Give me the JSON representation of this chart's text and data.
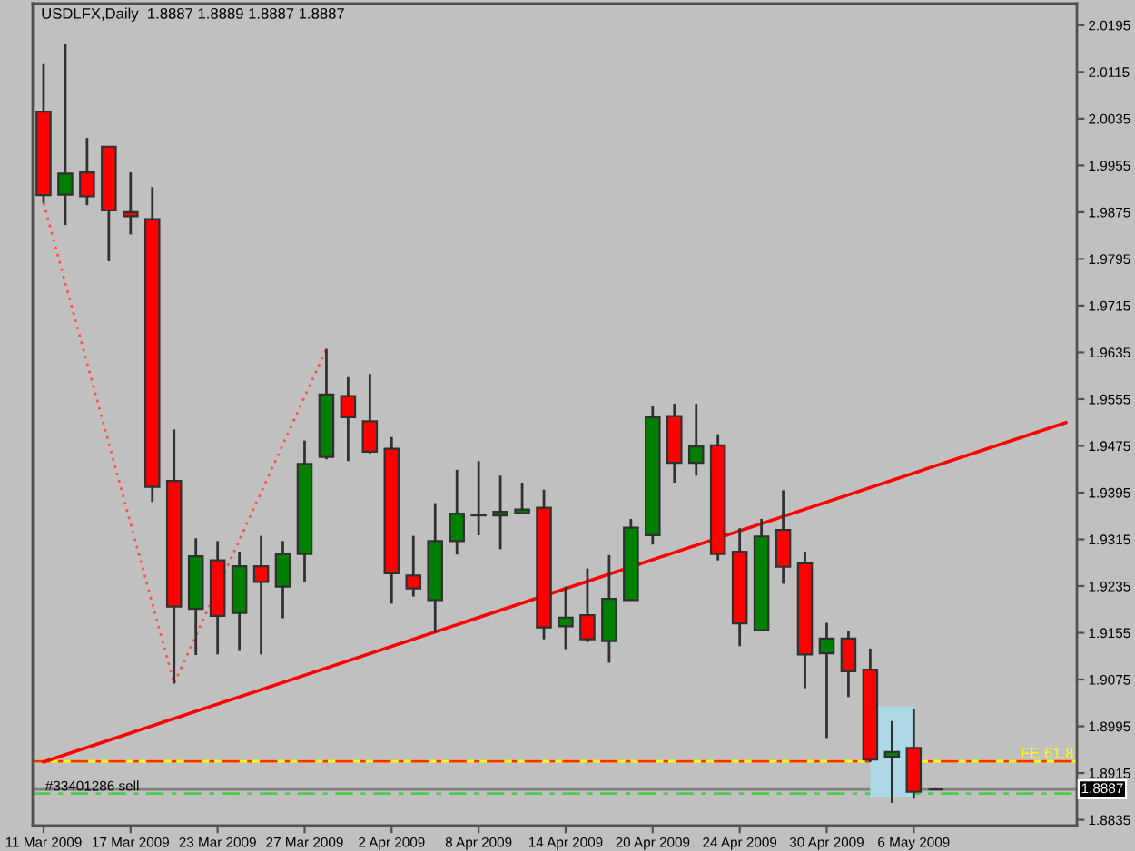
{
  "chart_data": {
    "type": "candlestick",
    "title": "USDLFX,Daily  1.8887 1.8889 1.8887 1.8887",
    "categories": [
      "11 Mar 2009",
      null,
      null,
      null,
      "17 Mar 2009",
      null,
      null,
      null,
      "23 Mar 2009",
      null,
      null,
      null,
      "27 Mar 2009",
      null,
      null,
      null,
      "2 Apr 2009",
      null,
      null,
      null,
      "8 Apr 2009",
      null,
      null,
      null,
      "14 Apr 2009",
      null,
      null,
      null,
      "20 Apr 2009",
      null,
      null,
      null,
      "24 Apr 2009",
      null,
      null,
      null,
      "30 Apr 2009",
      null,
      null,
      null,
      "6 May 2009",
      null,
      null,
      null,
      null,
      null,
      null,
      null
    ],
    "ohlc": [
      [
        2.0047,
        2.013,
        1.9891,
        1.9904
      ],
      [
        1.9905,
        2.0163,
        1.9853,
        1.9941
      ],
      [
        1.9943,
        2.0002,
        1.9887,
        1.9902
      ],
      [
        1.9987,
        1.9988,
        1.9791,
        1.9878
      ],
      [
        1.9875,
        1.9943,
        1.9837,
        1.9868
      ],
      [
        1.9863,
        1.9918,
        1.9379,
        1.9405
      ],
      [
        1.9415,
        1.9503,
        1.9068,
        1.92
      ],
      [
        1.9196,
        1.9317,
        1.9117,
        1.9286
      ],
      [
        1.9279,
        1.9312,
        1.9118,
        1.9184
      ],
      [
        1.9189,
        1.9294,
        1.9124,
        1.9269
      ],
      [
        1.9269,
        1.9321,
        1.9118,
        1.9242
      ],
      [
        1.9234,
        1.9312,
        1.918,
        1.929
      ],
      [
        1.929,
        1.9484,
        1.9242,
        1.9444
      ],
      [
        1.9456,
        1.9641,
        1.9452,
        1.9563
      ],
      [
        1.956,
        1.9594,
        1.9449,
        1.9524
      ],
      [
        1.9517,
        1.9598,
        1.9462,
        1.9465
      ],
      [
        1.947,
        1.949,
        1.9205,
        1.9257
      ],
      [
        1.9253,
        1.9321,
        1.9217,
        1.9231
      ],
      [
        1.9211,
        1.9377,
        1.9156,
        1.9312
      ],
      [
        1.9312,
        1.9434,
        1.9289,
        1.9359
      ],
      [
        1.9356,
        1.9449,
        1.9322,
        1.9357
      ],
      [
        1.9356,
        1.9424,
        1.9298,
        1.9362
      ],
      [
        1.936,
        1.9412,
        1.936,
        1.9366
      ],
      [
        1.9369,
        1.94,
        1.9144,
        1.9164
      ],
      [
        1.9166,
        1.9234,
        1.9127,
        1.9181
      ],
      [
        1.9185,
        1.9265,
        1.9139,
        1.9144
      ],
      [
        1.9141,
        1.9288,
        1.9104,
        1.9213
      ],
      [
        1.9211,
        1.935,
        1.921,
        1.9335
      ],
      [
        1.9322,
        1.9543,
        1.9306,
        1.9524
      ],
      [
        1.9526,
        1.9547,
        1.9412,
        1.9446
      ],
      [
        1.9446,
        1.9547,
        1.9424,
        1.9474
      ],
      [
        1.9476,
        1.9495,
        1.9279,
        1.929
      ],
      [
        1.9294,
        1.9334,
        1.9132,
        1.9171
      ],
      [
        1.9159,
        1.935,
        1.9159,
        1.932
      ],
      [
        1.9331,
        1.9399,
        1.9239,
        1.9268
      ],
      [
        1.9274,
        1.9294,
        1.906,
        1.9118
      ],
      [
        1.912,
        1.9172,
        1.8975,
        1.9145
      ],
      [
        1.9145,
        1.9159,
        1.9045,
        1.9089
      ],
      [
        1.9092,
        1.9128,
        1.8934,
        1.8938
      ],
      [
        1.8943,
        1.9004,
        1.8864,
        1.8951
      ],
      [
        1.8958,
        1.9025,
        1.8871,
        1.8883
      ],
      [
        1.8887,
        1.8889,
        1.8887,
        1.8887
      ],
      null,
      null,
      null,
      null,
      null,
      null
    ],
    "colors": [
      "#ff0000",
      "#008000",
      "#ff0000",
      "#ff0000",
      "#ff0000",
      "#ff0000",
      "#ff0000",
      "#008000",
      "#ff0000",
      "#008000",
      "#ff0000",
      "#008000",
      "#008000",
      "#008000",
      "#ff0000",
      "#ff0000",
      "#ff0000",
      "#ff0000",
      "#008000",
      "#008000",
      "#008000",
      "#008000",
      "#008000",
      "#ff0000",
      "#008000",
      "#ff0000",
      "#008000",
      "#008000",
      "#008000",
      "#ff0000",
      "#008000",
      "#ff0000",
      "#ff0000",
      "#008000",
      "#ff0000",
      "#ff0000",
      "#008000",
      "#ff0000",
      "#ff0000",
      "#008000",
      "#ff0000",
      "#303030",
      null,
      null,
      null,
      null,
      null,
      null
    ],
    "series": [
      {
        "type": "bar",
        "values": [
          null,
          null,
          null,
          null,
          null,
          null,
          null,
          null,
          null,
          null,
          null,
          null,
          null,
          null,
          null,
          null,
          null,
          null,
          null,
          null,
          null,
          null,
          null,
          null,
          null,
          null,
          null,
          null,
          null,
          null,
          null,
          null,
          null,
          null,
          null,
          null,
          null,
          null,
          null,
          0.0155,
          null,
          null,
          null,
          null,
          null,
          null,
          null,
          null
        ],
        "base": [
          null,
          null,
          null,
          null,
          null,
          null,
          null,
          null,
          null,
          null,
          null,
          null,
          null,
          null,
          null,
          null,
          null,
          null,
          null,
          null,
          null,
          null,
          null,
          null,
          null,
          null,
          null,
          null,
          null,
          null,
          null,
          null,
          null,
          null,
          null,
          null,
          null,
          null,
          null,
          1.8874,
          null,
          null,
          null,
          null,
          null,
          null,
          null,
          null
        ],
        "color": "#add8e6"
      },
      {
        "type": "line",
        "values": [
          1.8934,
          null,
          null,
          null,
          null,
          null,
          null,
          null,
          null,
          null,
          null,
          null,
          null,
          null,
          null,
          null,
          null,
          null,
          null,
          null,
          null,
          null,
          null,
          null,
          null,
          null,
          null,
          null,
          null,
          null,
          null,
          null,
          null,
          null,
          null,
          null,
          null,
          null,
          null,
          null,
          null,
          null,
          null,
          null,
          null,
          null,
          null,
          1.9515
        ],
        "color": "#ff0000",
        "line_style": "solid"
      },
      {
        "type": "line",
        "values": [
          1.9891,
          null,
          null,
          null,
          null,
          null,
          1.9068,
          null,
          null,
          null,
          null,
          null,
          null,
          1.9641,
          null,
          null,
          null,
          null,
          null,
          null,
          null,
          null,
          null,
          null,
          null,
          null,
          null,
          null,
          null,
          null,
          null,
          null,
          null,
          null,
          null,
          null,
          null,
          null,
          null,
          null,
          null,
          null,
          null,
          null,
          null,
          null,
          null,
          null
        ],
        "color": "#ff4d4d",
        "line_style": "dotted"
      }
    ],
    "ref_lines": [
      {
        "axis": "y",
        "value": 1.8935,
        "label": "FE 61.8",
        "color": "#ffff00",
        "line_style": "solid"
      },
      {
        "axis": "y",
        "value": 1.8935,
        "color": "#ff3000",
        "line_style": "dashdot"
      },
      {
        "axis": "y",
        "value": 1.8887,
        "label": "1.8887",
        "color": "#808080",
        "line_style": "solid"
      },
      {
        "axis": "y",
        "value": 1.888,
        "label": "#33401286 sell",
        "color": "#4ccc4c",
        "line_style": "dashdot"
      }
    ],
    "ylim": [
      1.8825,
      2.0232
    ],
    "yticks": [
      2.0195,
      2.0115,
      2.0035,
      1.9955,
      1.9875,
      1.9795,
      1.9715,
      1.9635,
      1.9555,
      1.9475,
      1.9395,
      1.9315,
      1.9235,
      1.9155,
      1.9075,
      1.8995,
      1.8915,
      1.8835
    ]
  }
}
